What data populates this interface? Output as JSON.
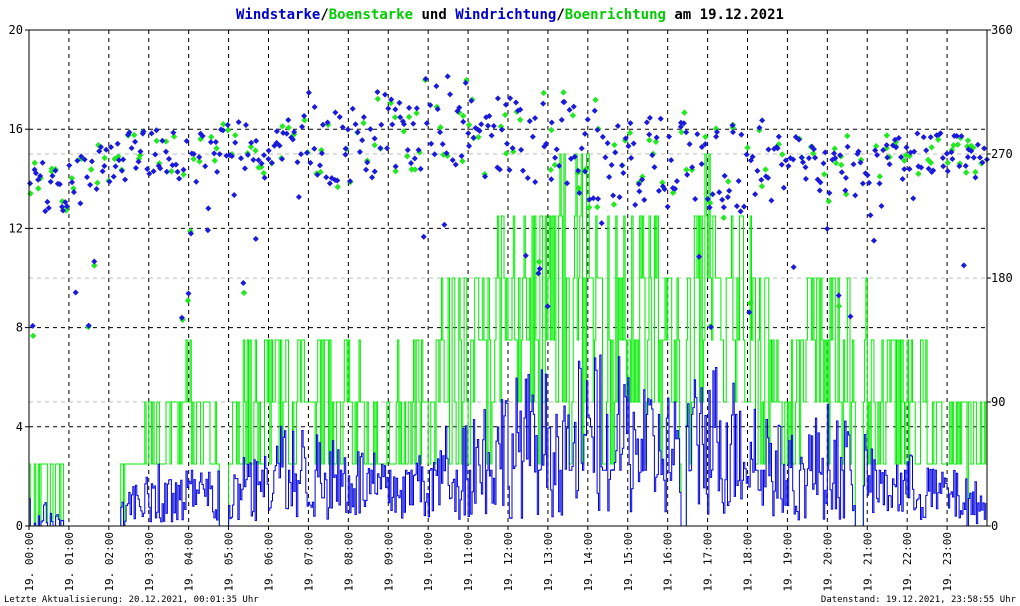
{
  "chart_data": {
    "type": "line",
    "title": {
      "parts": [
        {
          "text": "Windstarke",
          "color": "#0000cc"
        },
        {
          "text": "/",
          "color": "#000000"
        },
        {
          "text": "Boenstarke",
          "color": "#00cc00"
        },
        {
          "text": " und ",
          "color": "#000000"
        },
        {
          "text": "Windrichtung",
          "color": "#0000cc"
        },
        {
          "text": "/",
          "color": "#000000"
        },
        {
          "text": "Boenrichtung",
          "color": "#00cc00"
        },
        {
          "text": " am 19.12.2021",
          "color": "#000000"
        }
      ]
    },
    "x_axis": {
      "range_hours": [
        0,
        24
      ],
      "tick_labels": [
        "19. 00:00",
        "19. 01:00",
        "19. 02:00",
        "19. 03:00",
        "19. 04:00",
        "19. 05:00",
        "19. 06:00",
        "19. 07:00",
        "19. 08:00",
        "19. 09:00",
        "19. 10:00",
        "19. 11:00",
        "19. 12:00",
        "19. 13:00",
        "19. 14:00",
        "19. 15:00",
        "19. 16:00",
        "19. 17:00",
        "19. 18:00",
        "19. 19:00",
        "19. 20:00",
        "19. 21:00",
        "19. 22:00",
        "19. 23:00"
      ]
    },
    "y_left": {
      "range": [
        0,
        20
      ],
      "ticks": [
        "0",
        "4",
        "8",
        "12",
        "16",
        "20"
      ]
    },
    "y_right": {
      "range": [
        0,
        360
      ],
      "ticks": [
        "0",
        "90",
        "180",
        "270",
        "360"
      ]
    },
    "grid": true,
    "colors": {
      "wind": "#0000dd",
      "gust": "#00ee00",
      "wind_dir": "#1a1adc",
      "gust_dir": "#22e822"
    },
    "hourly_profile": {
      "hours": [
        0,
        1,
        2,
        3,
        4,
        5,
        6,
        7,
        8,
        9,
        10,
        11,
        12,
        13,
        14,
        15,
        16,
        17,
        18,
        19,
        20,
        21,
        22,
        23,
        24
      ],
      "wind_speed_mean": [
        0.8,
        0.1,
        0.2,
        1.2,
        1.5,
        1.2,
        2.0,
        2.1,
        1.8,
        1.3,
        1.8,
        2.5,
        3.0,
        3.3,
        3.5,
        3.4,
        2.8,
        3.5,
        3.2,
        1.8,
        2.5,
        1.8,
        1.5,
        1.2,
        0.8
      ],
      "gust_speed_mean": [
        2.4,
        0.6,
        0.9,
        3.5,
        4.0,
        3.3,
        5.3,
        5.5,
        4.8,
        3.8,
        5.0,
        6.8,
        8.0,
        8.5,
        9.0,
        8.6,
        7.2,
        8.8,
        8.4,
        5.3,
        7.2,
        5.5,
        4.5,
        3.4,
        2.4
      ],
      "wind_direction_mean": [
        248,
        244,
        267,
        272,
        265,
        278,
        270,
        285,
        282,
        285,
        295,
        290,
        283,
        277,
        271,
        268,
        261,
        262,
        262,
        270,
        258,
        258,
        270,
        272,
        268
      ]
    }
  },
  "footer": {
    "left": "Letzte Aktualisierung: 20.12.2021, 00:01:35 Uhr",
    "right": "Datenstand: 19.12.2021, 23:58:55 Uhr"
  }
}
